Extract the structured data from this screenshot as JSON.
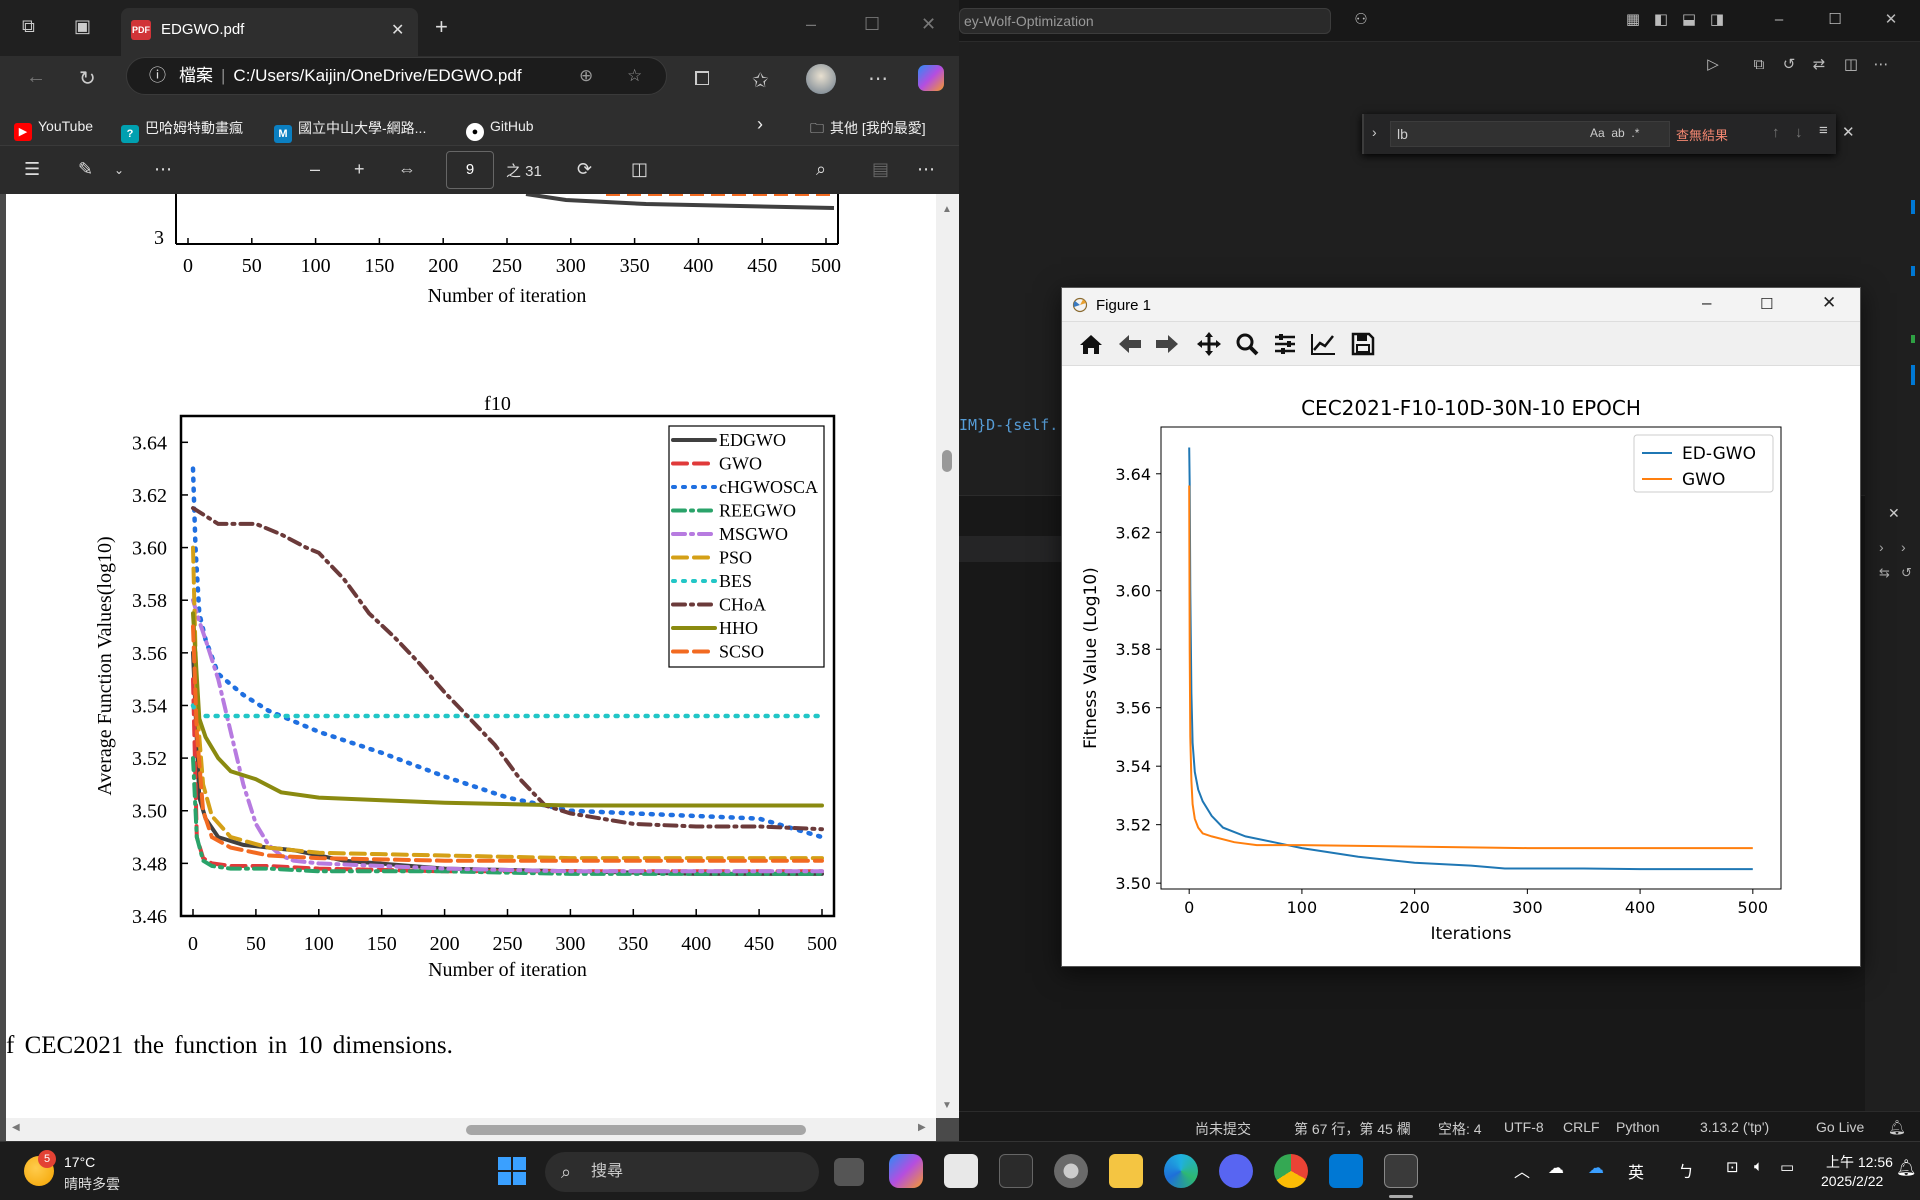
{
  "vscode": {
    "title_search": "ey-Wolf-Optimization",
    "find_query": "lb",
    "find_options": [
      "Aa",
      "ab",
      ".*"
    ],
    "find_result": "查無結果",
    "code_fragment": {
      "part1": "IM}D-{",
      "part2": "self."
    },
    "status": {
      "git": "尚未提交",
      "position": "第 67 行，第 45 欄",
      "spaces": "空格: 4",
      "encoding": "UTF-8",
      "eol": "CRLF",
      "language": "Python",
      "interpreter": "3.13.2 ('tp')",
      "golive": "Go Live"
    }
  },
  "edge": {
    "tab_title": "EDGWO.pdf",
    "address_label": "檔案",
    "address_path": "C:/Users/Kaijin/OneDrive/EDGWO.pdf",
    "bookmarks": [
      "YouTube",
      "巴哈姆特動畫瘋",
      "國立中山大學-網路...",
      "GitHub"
    ],
    "other_favorites": "其他 [我的最愛]",
    "pdf_page": "9",
    "pdf_page_total": "之 31",
    "caption": "f CEC2021 the function in 10 dimensions.",
    "colors": {
      "tab_bg": "#2e2e2e",
      "toolbar": "#2b2b2b"
    }
  },
  "figure_window": {
    "title": "Figure 1",
    "toolbar": [
      "home-icon",
      "back-icon",
      "forward-icon",
      "pan-icon",
      "zoom-icon",
      "configure-subplots-icon",
      "edit-axis-icon",
      "save-icon"
    ]
  },
  "taskbar": {
    "weather_temp": "17°C",
    "weather_desc": "晴時多雲",
    "weather_badge": "5",
    "search_placeholder": "搜尋",
    "ime": "英",
    "time": "上午 12:56",
    "date": "2025/2/22"
  },
  "chart_data": [
    {
      "id": "pdf-top-partial",
      "type": "line",
      "ylabel": "",
      "xlabel": "Number of iteration",
      "y_ticks": [
        "3"
      ],
      "x_ticks": [
        "0",
        "50",
        "100",
        "150",
        "200",
        "250",
        "300",
        "350",
        "400",
        "450",
        "500"
      ]
    },
    {
      "id": "pdf-f10",
      "type": "line",
      "title": "f10",
      "xlabel": "Number of iteration",
      "ylabel": "Average Function Values(log10)",
      "xlim": [
        0,
        500
      ],
      "ylim": [
        3.46,
        3.65
      ],
      "x_ticks": [
        "0",
        "50",
        "100",
        "150",
        "200",
        "250",
        "300",
        "350",
        "400",
        "450",
        "500"
      ],
      "y_ticks": [
        "3.46",
        "3.48",
        "3.50",
        "3.52",
        "3.54",
        "3.56",
        "3.58",
        "3.60",
        "3.62",
        "3.64"
      ],
      "legend_position": "top-right",
      "series": [
        {
          "name": "EDGWO",
          "color": "#404040",
          "style": "solid",
          "x": [
            0,
            5,
            10,
            20,
            40,
            80,
            120,
            200,
            300,
            400,
            500
          ],
          "y": [
            3.56,
            3.505,
            3.497,
            3.49,
            3.487,
            3.485,
            3.481,
            3.478,
            3.477,
            3.476,
            3.476
          ]
        },
        {
          "name": "GWO",
          "color": "#e03a3a",
          "style": "dash",
          "x": [
            0,
            3,
            8,
            15,
            30,
            60,
            100,
            200,
            300,
            400,
            500
          ],
          "y": [
            3.55,
            3.49,
            3.482,
            3.48,
            3.479,
            3.479,
            3.478,
            3.477,
            3.477,
            3.477,
            3.477
          ]
        },
        {
          "name": "cHGWOSCA",
          "color": "#1f6fe0",
          "style": "dot",
          "x": [
            0,
            2,
            5,
            10,
            20,
            40,
            60,
            100,
            150,
            200,
            250,
            300,
            350,
            400,
            450,
            500
          ],
          "y": [
            3.63,
            3.6,
            3.575,
            3.565,
            3.552,
            3.544,
            3.538,
            3.53,
            3.522,
            3.513,
            3.505,
            3.5,
            3.499,
            3.498,
            3.497,
            3.49
          ]
        },
        {
          "name": "REEGWO",
          "color": "#2aa36a",
          "style": "dashdot",
          "x": [
            0,
            3,
            8,
            15,
            30,
            60,
            100,
            200,
            300,
            400,
            500
          ],
          "y": [
            3.52,
            3.49,
            3.481,
            3.479,
            3.478,
            3.478,
            3.477,
            3.477,
            3.476,
            3.476,
            3.476
          ]
        },
        {
          "name": "MSGWO",
          "color": "#b77be0",
          "style": "dashdot",
          "x": [
            0,
            5,
            10,
            20,
            30,
            40,
            50,
            60,
            70,
            80,
            100,
            150,
            200,
            300,
            400,
            500
          ],
          "y": [
            3.58,
            3.572,
            3.565,
            3.55,
            3.53,
            3.51,
            3.495,
            3.487,
            3.483,
            3.481,
            3.48,
            3.479,
            3.478,
            3.477,
            3.477,
            3.477
          ]
        },
        {
          "name": "PSO",
          "color": "#d4a017",
          "style": "dash",
          "x": [
            0,
            3,
            8,
            15,
            30,
            60,
            100,
            200,
            300,
            400,
            500
          ],
          "y": [
            3.6,
            3.54,
            3.51,
            3.498,
            3.49,
            3.486,
            3.484,
            3.483,
            3.482,
            3.482,
            3.482
          ]
        },
        {
          "name": "BES",
          "color": "#22c6c6",
          "style": "dot",
          "x": [
            0,
            3,
            500
          ],
          "y": [
            3.54,
            3.536,
            3.536
          ]
        },
        {
          "name": "CHoA",
          "color": "#6b3a3a",
          "style": "dashdot",
          "x": [
            0,
            10,
            20,
            30,
            50,
            70,
            90,
            100,
            120,
            140,
            160,
            180,
            200,
            220,
            240,
            260,
            280,
            300,
            350,
            400,
            450,
            500
          ],
          "y": [
            3.615,
            3.612,
            3.609,
            3.609,
            3.609,
            3.605,
            3.6,
            3.598,
            3.588,
            3.575,
            3.566,
            3.556,
            3.545,
            3.535,
            3.525,
            3.512,
            3.502,
            3.499,
            3.495,
            3.494,
            3.494,
            3.493
          ]
        },
        {
          "name": "HHO",
          "color": "#8a8a10",
          "style": "solid",
          "x": [
            0,
            5,
            10,
            20,
            30,
            50,
            70,
            100,
            150,
            200,
            300,
            400,
            500
          ],
          "y": [
            3.575,
            3.535,
            3.528,
            3.52,
            3.515,
            3.512,
            3.507,
            3.505,
            3.504,
            3.503,
            3.502,
            3.502,
            3.502
          ]
        },
        {
          "name": "SCSO",
          "color": "#f26a21",
          "style": "dash",
          "x": [
            0,
            3,
            8,
            15,
            30,
            60,
            100,
            200,
            300,
            400,
            500
          ],
          "y": [
            3.57,
            3.53,
            3.5,
            3.49,
            3.486,
            3.483,
            3.482,
            3.481,
            3.481,
            3.481,
            3.481
          ]
        }
      ]
    },
    {
      "id": "matplotlib",
      "type": "line",
      "title": "CEC2021-F10-10D-30N-10 EPOCH",
      "xlabel": "Iterations",
      "ylabel": "Fitness Value (Log10)",
      "xlim": [
        -25,
        525
      ],
      "ylim": [
        3.498,
        3.656
      ],
      "x_ticks": [
        "0",
        "100",
        "200",
        "300",
        "400",
        "500"
      ],
      "y_ticks": [
        "3.50",
        "3.52",
        "3.54",
        "3.56",
        "3.58",
        "3.60",
        "3.62",
        "3.64"
      ],
      "legend_position": "top-right",
      "series": [
        {
          "name": "ED-GWO",
          "color": "#1f77b4",
          "x": [
            0,
            0.5,
            1,
            2,
            3,
            5,
            8,
            12,
            20,
            30,
            50,
            75,
            100,
            150,
            200,
            250,
            280,
            350,
            400,
            500
          ],
          "y": [
            3.649,
            3.636,
            3.6,
            3.565,
            3.548,
            3.538,
            3.532,
            3.528,
            3.523,
            3.519,
            3.516,
            3.514,
            3.512,
            3.509,
            3.507,
            3.506,
            3.505,
            3.505,
            3.5048,
            3.5048
          ]
        },
        {
          "name": "GWO",
          "color": "#ff7f0e",
          "x": [
            0,
            0.5,
            1,
            2,
            3,
            5,
            8,
            12,
            20,
            40,
            60,
            100,
            200,
            300,
            400,
            500
          ],
          "y": [
            3.636,
            3.58,
            3.55,
            3.535,
            3.527,
            3.522,
            3.519,
            3.517,
            3.516,
            3.514,
            3.513,
            3.513,
            3.5125,
            3.512,
            3.512,
            3.512
          ]
        }
      ]
    }
  ]
}
